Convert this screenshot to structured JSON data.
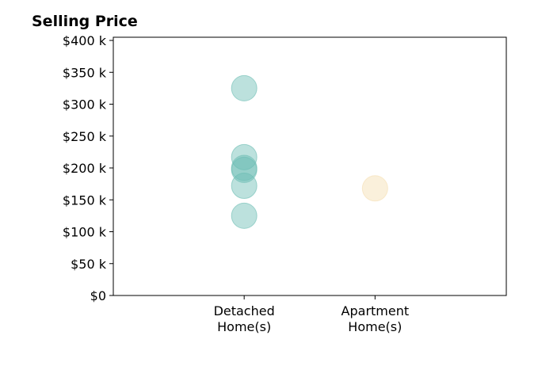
{
  "chart_data": {
    "type": "scatter",
    "title": "Selling Price",
    "xlabel": "",
    "ylabel": "",
    "categories": [
      "Detached\nHome(s)",
      "Apartment\nHome(s)"
    ],
    "ylim": [
      0,
      405000
    ],
    "yticks": [
      0,
      50000,
      100000,
      150000,
      200000,
      250000,
      300000,
      350000,
      400000
    ],
    "ytick_labels": [
      "$0",
      "$50 k",
      "$100 k",
      "$150 k",
      "$200 k",
      "$250 k",
      "$300 k",
      "$350 k",
      "$400 k"
    ],
    "grid": false,
    "legend": "none",
    "series": [
      {
        "category": "Detached\nHome(s)",
        "color": "#6bbcb3",
        "values": [
          325000,
          217000,
          200000,
          197000,
          172000,
          125000
        ]
      },
      {
        "category": "Apartment\nHome(s)",
        "color": "#f5deb0",
        "values": [
          168000
        ]
      }
    ]
  }
}
